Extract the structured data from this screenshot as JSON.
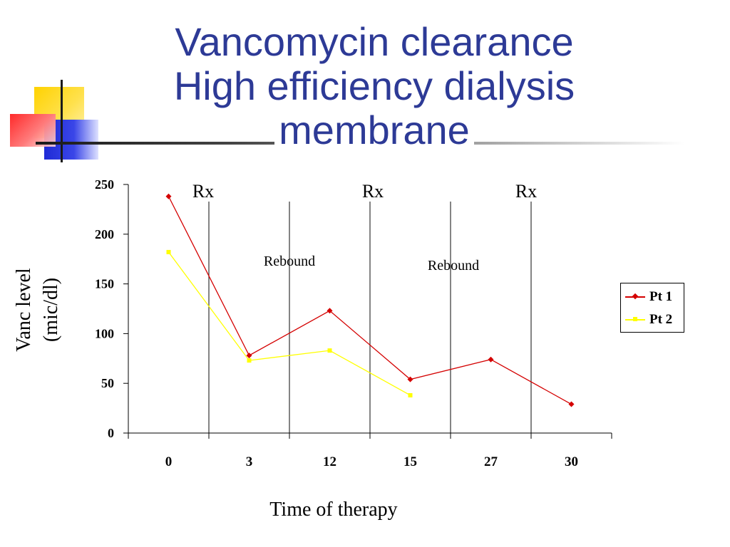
{
  "title_lines": [
    "Vancomycin clearance",
    "High efficiency dialysis",
    "membrane"
  ],
  "colors": {
    "title": "#2d3a96",
    "pt1": "#d40000",
    "pt2": "#ffff00"
  },
  "chart_data": {
    "type": "line",
    "categories": [
      "0",
      "3",
      "12",
      "15",
      "27",
      "30"
    ],
    "series": [
      {
        "name": "Pt 1",
        "values": [
          238,
          78,
          123,
          54,
          74,
          29
        ]
      },
      {
        "name": "Pt 2",
        "values": [
          182,
          73,
          83,
          38,
          null,
          null
        ]
      }
    ],
    "xlabel": "Time of therapy",
    "ylabel_lines": [
      "Vanc level",
      "(mic/dl)"
    ],
    "ylim": [
      0,
      250
    ],
    "yticks": [
      0,
      50,
      100,
      150,
      200,
      250
    ],
    "grid": false,
    "legend": "right",
    "annotations": {
      "rx": [
        "Rx",
        "Rx",
        "Rx"
      ],
      "rebound": [
        "Rebound",
        "Rebound"
      ],
      "divider_after_categories": [
        0.5,
        1.5,
        2.5,
        3.5,
        4.5
      ]
    }
  }
}
